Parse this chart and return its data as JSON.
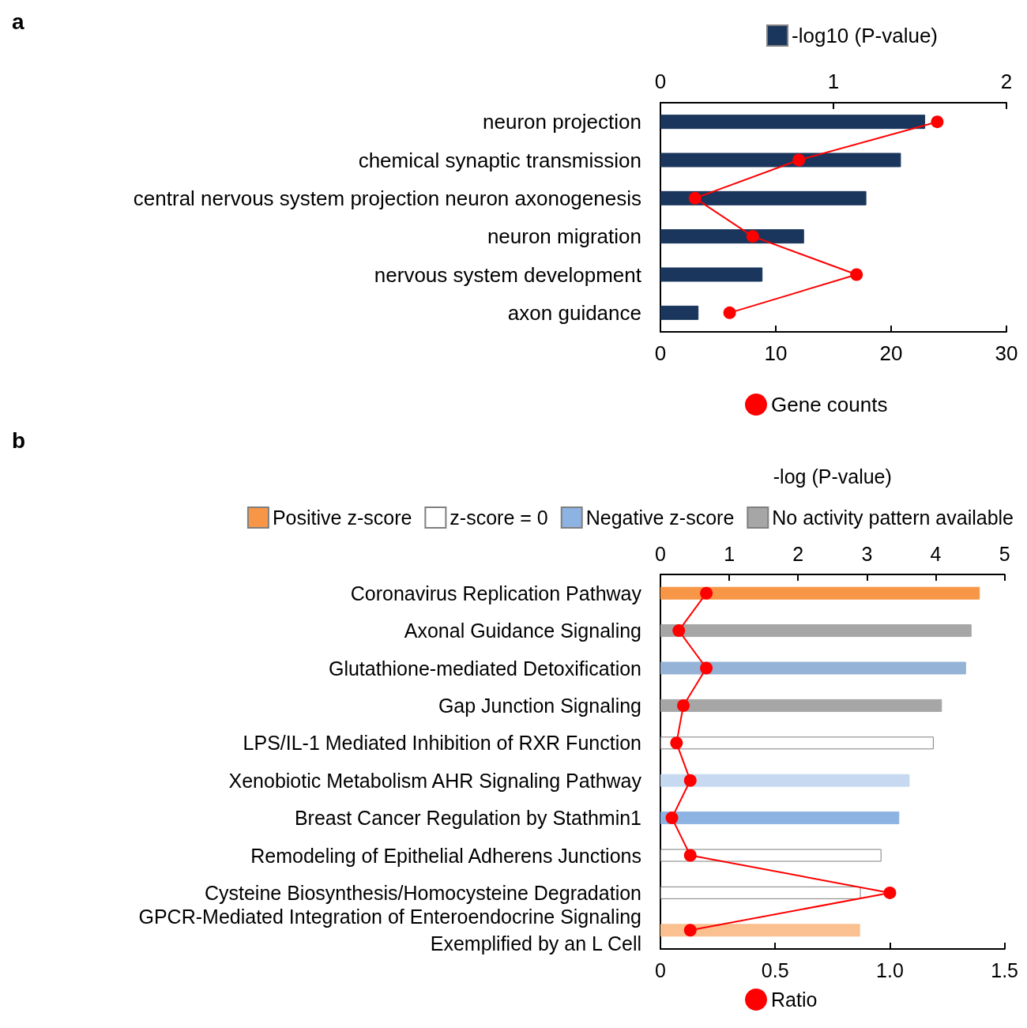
{
  "chart_data": [
    {
      "type": "bar",
      "title": "a",
      "orientation": "horizontal",
      "categories": [
        "neuron projection",
        "chemical synaptic transmission",
        "central nervous system projection neuron axonogenesis",
        "neuron migration",
        "nervous system development",
        "axon guidance"
      ],
      "series": [
        {
          "name": "-log10 (P-value)",
          "axis": "x2",
          "color": "#1b365d",
          "values": [
            1.53,
            1.39,
            1.19,
            0.83,
            0.59,
            0.22
          ]
        },
        {
          "name": "Gene counts",
          "type": "line",
          "color": "#ff0000",
          "marker": "circle",
          "line_style": "solid",
          "values": [
            24,
            12,
            3,
            8,
            17,
            6
          ]
        }
      ],
      "xlim": [
        0,
        30
      ],
      "xticks": [
        0,
        10,
        20,
        30
      ],
      "x2lim": [
        0,
        2
      ],
      "x2ticks": [
        0,
        1,
        2
      ],
      "grid": false,
      "legend": "right"
    },
    {
      "type": "bar",
      "title": "b",
      "orientation": "horizontal",
      "x2label": "-log (P-value)",
      "categories": [
        "Coronavirus Replication Pathway",
        "Axonal Guidance Signaling",
        "Glutathione-mediated Detoxification",
        "Gap Junction Signaling",
        "LPS/IL-1 Mediated Inhibition of RXR Function",
        "Xenobiotic Metabolism AHR Signaling Pathway",
        "Breast Cancer Regulation by Stathmin1",
        "Remodeling of Epithelial Adherens Junctions",
        "Cysteine Biosynthesis/Homocysteine Degradation",
        "GPCR-Mediated Integration of Enteroendocrine Signaling\nExemplified by an L Cell"
      ],
      "series": [
        {
          "name": "Positive z-score",
          "axis": "x2",
          "color": "#f79646",
          "values": [
            4.64,
            null,
            null,
            null,
            null,
            null,
            null,
            null,
            null,
            2.9
          ],
          "colors": [
            "#f79646",
            null,
            null,
            null,
            null,
            null,
            null,
            null,
            null,
            "#fac090"
          ]
        },
        {
          "name": "z-score = 0",
          "axis": "x2",
          "color": "#ffffff",
          "values": [
            null,
            null,
            null,
            null,
            3.97,
            null,
            null,
            3.21,
            2.91,
            null
          ],
          "colors": [
            null,
            null,
            null,
            null,
            "#ffffff",
            null,
            null,
            "#ffffff",
            "#ffffff",
            null
          ]
        },
        {
          "name": "Negative z-score",
          "axis": "x2",
          "color": "#8db3e2",
          "values": [
            null,
            null,
            4.44,
            null,
            null,
            3.62,
            3.47,
            null,
            null,
            null
          ],
          "colors": [
            null,
            null,
            "#95b3d7",
            null,
            null,
            "#c6d9f1",
            "#8db3e2",
            null,
            null,
            null
          ]
        },
        {
          "name": "No activity pattern available",
          "axis": "x2",
          "color": "#a6a6a6",
          "values": [
            null,
            4.52,
            null,
            4.09,
            null,
            null,
            null,
            null,
            null,
            null
          ],
          "colors": [
            null,
            "#a6a6a6",
            null,
            "#a6a6a6",
            null,
            null,
            null,
            null,
            null,
            null
          ]
        },
        {
          "name": "Ratio",
          "type": "line",
          "color": "#ff0000",
          "marker": "circle",
          "line_style": "solid",
          "values": [
            0.2,
            0.08,
            0.2,
            0.1,
            0.07,
            0.13,
            0.05,
            0.13,
            1.0,
            0.13
          ]
        }
      ],
      "xlim": [
        0,
        1.5
      ],
      "xticks": [
        0,
        0.5,
        {
          "value": 1,
          "label": "1.0"
        },
        1.5
      ],
      "x2lim": [
        0,
        5
      ],
      "x2ticks": [
        0,
        1,
        2,
        3,
        4,
        5
      ],
      "grid": false,
      "legend": "top"
    }
  ]
}
